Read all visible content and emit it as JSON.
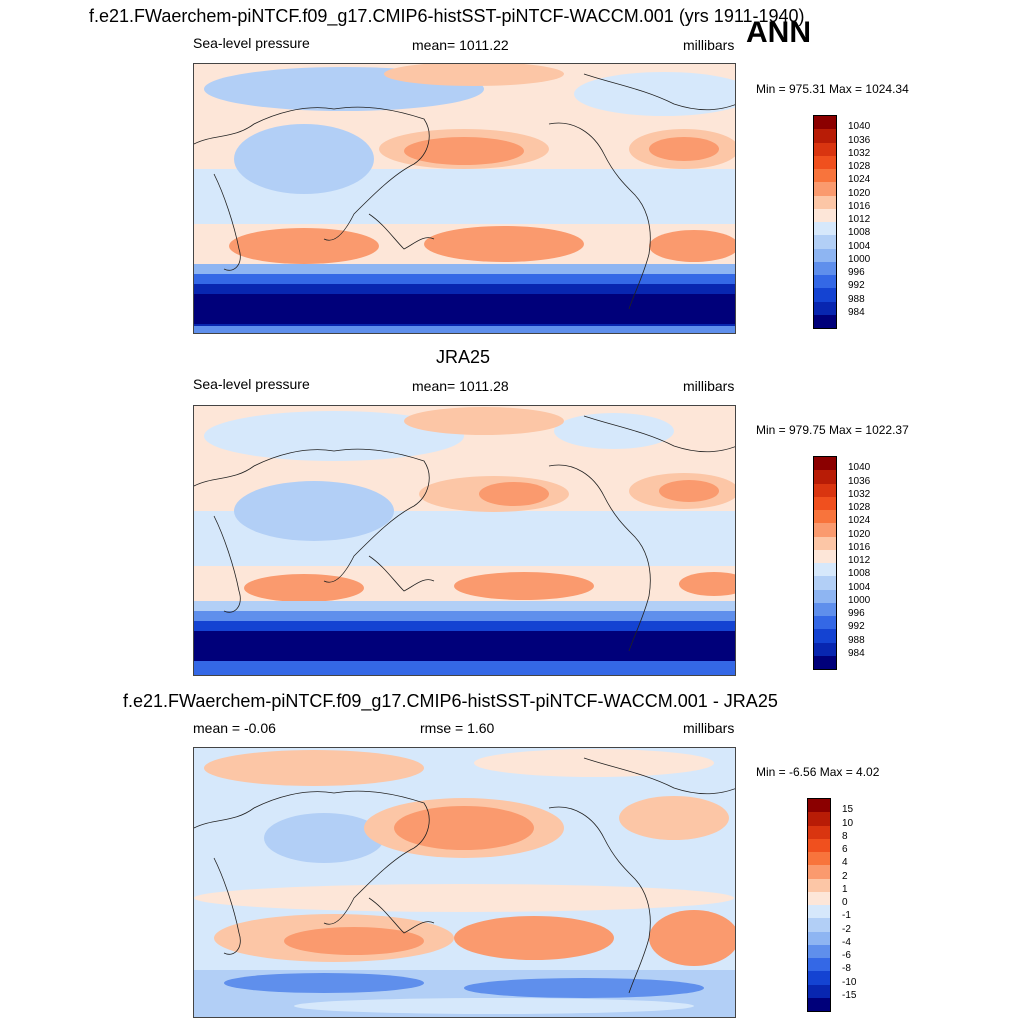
{
  "annotation": "ANN",
  "panel1": {
    "title": "f.e21.FWaerchem-piNTCF.f09_g17.CMIP6-histSST-piNTCF-WACCM.001 (yrs 1911-1940)",
    "left": "Sea-level pressure",
    "center": "mean= 1011.22",
    "right": "millibars",
    "minmax": "Min = 975.31 Max = 1024.34"
  },
  "panel2": {
    "title": "JRA25",
    "left": "Sea-level pressure",
    "center": "mean= 1011.28",
    "right": "millibars",
    "minmax": "Min = 979.75 Max = 1022.37"
  },
  "panel3": {
    "title": "f.e21.FWaerchem-piNTCF.f09_g17.CMIP6-histSST-piNTCF-WACCM.001 - JRA25",
    "left": "mean =  -0.06",
    "center": "rmse =   1.60",
    "right": "millibars",
    "minmax": "Min =  -6.56 Max =   4.02"
  },
  "colorbar_abs": {
    "labels": [
      "1040",
      "1036",
      "1032",
      "1028",
      "1024",
      "1020",
      "1016",
      "1012",
      "1008",
      "1004",
      "1000",
      "996",
      "992",
      "988",
      "984"
    ],
    "colors": [
      "#8b0000",
      "#b81c06",
      "#d93510",
      "#f0501e",
      "#f8743c",
      "#fa9a6e",
      "#fcc6a6",
      "#fde6d8",
      "#d6e8fb",
      "#b2cff6",
      "#8eb5f2",
      "#5f8fec",
      "#3468e6",
      "#1443d2",
      "#0826b0",
      "#00007a"
    ]
  },
  "colorbar_diff": {
    "labels": [
      "15",
      "10",
      "8",
      "6",
      "4",
      "2",
      "1",
      "0",
      "-1",
      "-2",
      "-4",
      "-6",
      "-8",
      "-10",
      "-15"
    ],
    "colors": [
      "#8b0000",
      "#b81c06",
      "#d93510",
      "#f0501e",
      "#f8743c",
      "#fa9a6e",
      "#fcc6a6",
      "#fde6d8",
      "#d6e8fb",
      "#b2cff6",
      "#8eb5f2",
      "#5f8fec",
      "#3468e6",
      "#1443d2",
      "#0826b0",
      "#00007a"
    ]
  }
}
